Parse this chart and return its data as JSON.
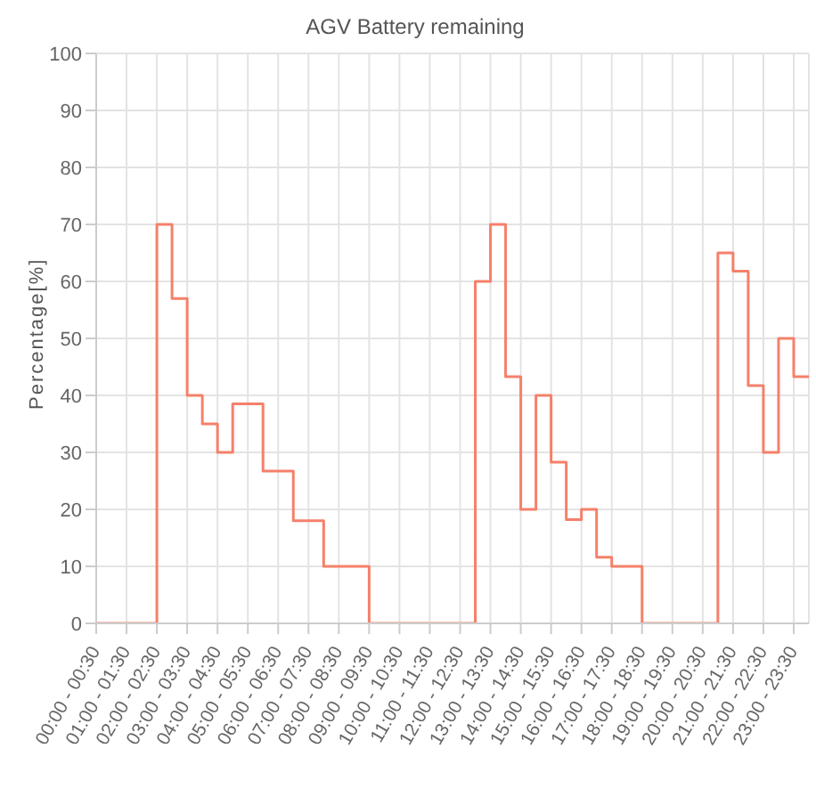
{
  "chart_data": {
    "type": "step",
    "title": "AGV Battery remaining",
    "ylabel": "Percentage[%]",
    "categories": [
      "00:00 - 00:30",
      null,
      "01:00 - 01:30",
      null,
      "02:00 - 02:30",
      null,
      "03:00 - 03:30",
      null,
      "04:00 - 04:30",
      null,
      "05:00 - 05:30",
      null,
      "06:00 - 06:30",
      null,
      "07:00 - 07:30",
      null,
      "08:00 - 08:30",
      null,
      "09:00 - 09:30",
      null,
      "10:00 - 10:30",
      null,
      "11:00 - 11:30",
      null,
      "12:00 - 12:30",
      null,
      "13:00 - 13:30",
      null,
      "14:00 - 14:30",
      null,
      "15:00 - 15:30",
      null,
      "16:00 - 16:30",
      null,
      "17:00 - 17:30",
      null,
      "18:00 - 18:30",
      null,
      "19:00 - 19:30",
      null,
      "20:00 - 20:30",
      null,
      "21:00 - 21:30",
      null,
      "22:00 - 22:30",
      null,
      "23:00 - 23:30",
      null
    ],
    "series": [
      {
        "color": "#f5806a",
        "values": [
          0,
          0,
          0,
          0,
          70,
          57,
          40,
          35,
          30,
          38.5,
          38.5,
          26.7,
          26.7,
          18,
          18,
          10,
          10,
          10,
          0,
          0,
          0,
          0,
          0,
          0,
          0,
          60,
          70,
          43.3,
          20,
          40,
          28.3,
          18.2,
          20,
          11.6,
          10,
          10,
          0,
          0,
          0,
          0,
          0,
          65,
          61.8,
          41.7,
          30,
          50,
          43.3,
          43.3
        ]
      }
    ],
    "ylim": [
      0,
      100
    ],
    "yticks": [
      0,
      10,
      20,
      30,
      40,
      50,
      60,
      70,
      80,
      90,
      100
    ],
    "grid": true,
    "legend": false,
    "marker": "none",
    "line_style": "solid"
  }
}
